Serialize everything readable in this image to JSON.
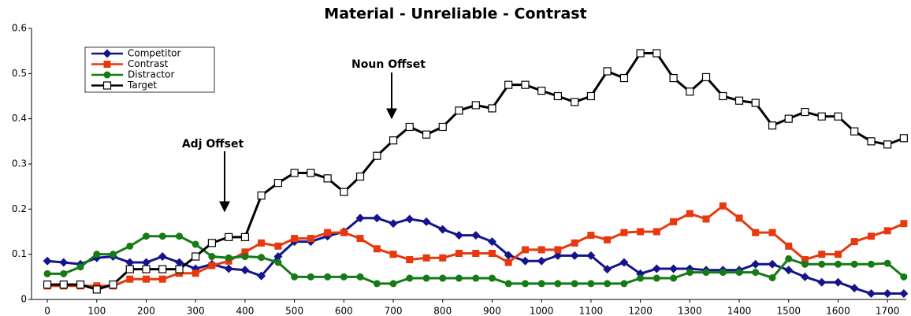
{
  "chart_data": {
    "type": "line",
    "title": "Material - Unreliable - Contrast",
    "x": [
      0,
      33,
      67,
      100,
      133,
      167,
      200,
      233,
      267,
      300,
      333,
      367,
      400,
      433,
      467,
      500,
      533,
      567,
      600,
      633,
      667,
      700,
      733,
      767,
      800,
      833,
      867,
      900,
      933,
      967,
      1000,
      1033,
      1067,
      1100,
      1133,
      1167,
      1200,
      1233,
      1267,
      1300,
      1333,
      1367,
      1400,
      1433,
      1467,
      1500,
      1533,
      1567,
      1600,
      1633,
      1667,
      1700,
      1733
    ],
    "series": [
      {
        "name": "Competitor",
        "color": "#14148c",
        "marker": "diamond",
        "values": [
          0.085,
          0.082,
          0.078,
          0.092,
          0.095,
          0.082,
          0.082,
          0.095,
          0.082,
          0.068,
          0.078,
          0.068,
          0.065,
          0.052,
          0.095,
          0.128,
          0.128,
          0.14,
          0.15,
          0.18,
          0.18,
          0.168,
          0.178,
          0.172,
          0.155,
          0.142,
          0.142,
          0.128,
          0.098,
          0.085,
          0.085,
          0.097,
          0.097,
          0.097,
          0.067,
          0.082,
          0.057,
          0.068,
          0.068,
          0.068,
          0.065,
          0.065,
          0.065,
          0.078,
          0.078,
          0.065,
          0.05,
          0.038,
          0.038,
          0.025,
          0.013,
          0.013,
          0.013
        ]
      },
      {
        "name": "Contrast",
        "color": "#e8380d",
        "marker": "square",
        "values": [
          0.03,
          0.03,
          0.03,
          0.03,
          0.03,
          0.045,
          0.045,
          0.045,
          0.058,
          0.058,
          0.075,
          0.085,
          0.105,
          0.125,
          0.118,
          0.135,
          0.135,
          0.148,
          0.148,
          0.135,
          0.112,
          0.1,
          0.088,
          0.092,
          0.092,
          0.102,
          0.102,
          0.102,
          0.082,
          0.11,
          0.11,
          0.11,
          0.125,
          0.142,
          0.132,
          0.148,
          0.15,
          0.15,
          0.172,
          0.19,
          0.178,
          0.207,
          0.18,
          0.148,
          0.148,
          0.118,
          0.088,
          0.1,
          0.1,
          0.128,
          0.14,
          0.152,
          0.168
        ]
      },
      {
        "name": "Distractor",
        "color": "#167a16",
        "marker": "circle",
        "values": [
          0.057,
          0.057,
          0.072,
          0.1,
          0.1,
          0.118,
          0.14,
          0.14,
          0.14,
          0.122,
          0.095,
          0.092,
          0.095,
          0.093,
          0.082,
          0.05,
          0.05,
          0.05,
          0.05,
          0.05,
          0.035,
          0.035,
          0.047,
          0.047,
          0.047,
          0.047,
          0.047,
          0.047,
          0.035,
          0.035,
          0.035,
          0.035,
          0.035,
          0.035,
          0.035,
          0.035,
          0.047,
          0.047,
          0.047,
          0.06,
          0.06,
          0.06,
          0.06,
          0.06,
          0.048,
          0.09,
          0.078,
          0.078,
          0.078,
          0.078,
          0.078,
          0.08,
          0.05
        ]
      },
      {
        "name": "Target",
        "color": "#000000",
        "marker": "open-square",
        "values": [
          0.033,
          0.033,
          0.033,
          0.022,
          0.033,
          0.067,
          0.067,
          0.067,
          0.067,
          0.095,
          0.125,
          0.138,
          0.138,
          0.23,
          0.258,
          0.28,
          0.28,
          0.268,
          0.238,
          0.272,
          0.318,
          0.352,
          0.382,
          0.365,
          0.382,
          0.418,
          0.43,
          0.423,
          0.475,
          0.475,
          0.462,
          0.45,
          0.437,
          0.45,
          0.505,
          0.49,
          0.545,
          0.545,
          0.49,
          0.46,
          0.492,
          0.45,
          0.44,
          0.435,
          0.385,
          0.4,
          0.415,
          0.405,
          0.405,
          0.372,
          0.35,
          0.343,
          0.357
        ]
      }
    ],
    "xlim": [
      -32,
      1738
    ],
    "xticks": [
      0,
      100,
      200,
      300,
      400,
      500,
      600,
      700,
      800,
      900,
      1000,
      1100,
      1200,
      1300,
      1400,
      1500,
      1600,
      1700
    ],
    "ylim": [
      0,
      0.6
    ],
    "yticks": [
      0,
      0.1,
      0.2,
      0.3,
      0.4,
      0.5,
      0.6
    ],
    "grid": false,
    "legend": "upper-left",
    "annotations": [
      "Adj Offset",
      "Noun Offset"
    ]
  }
}
